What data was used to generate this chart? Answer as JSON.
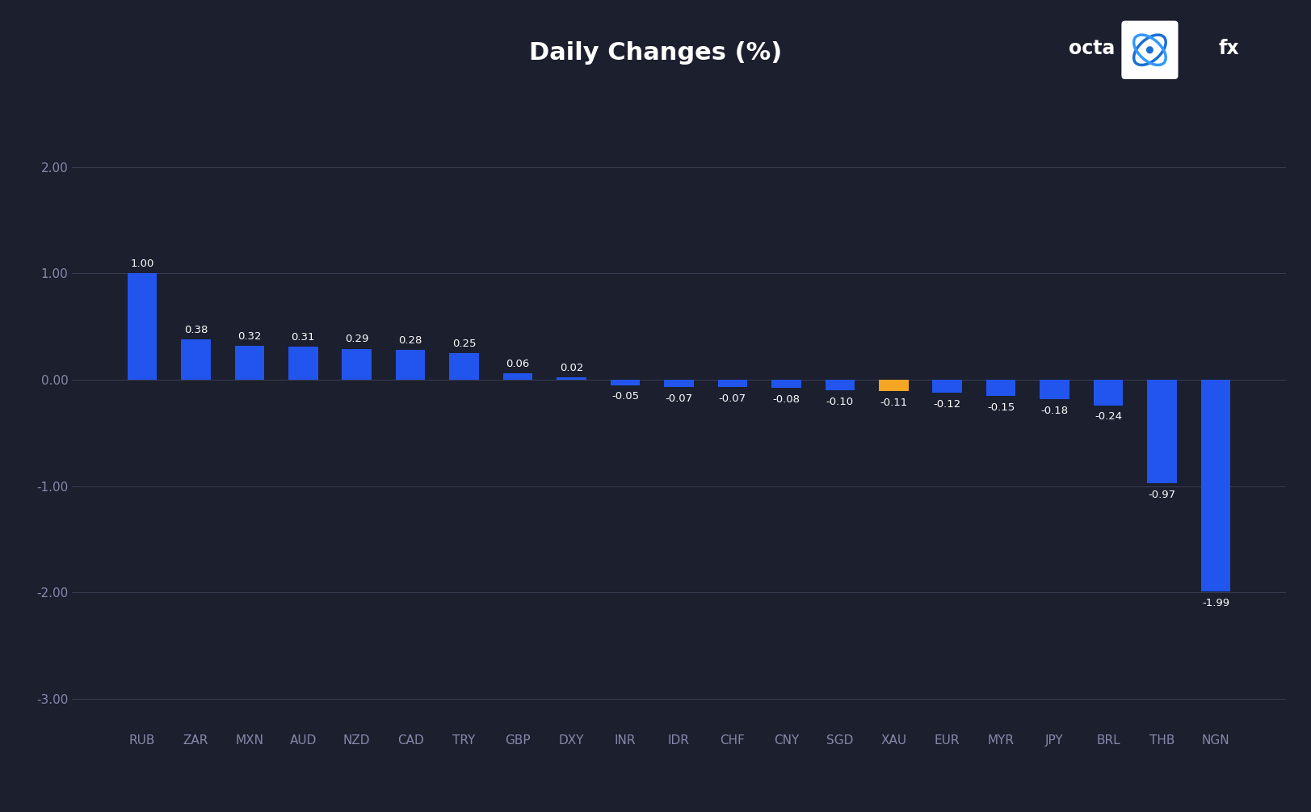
{
  "categories": [
    "RUB",
    "ZAR",
    "MXN",
    "AUD",
    "NZD",
    "CAD",
    "TRY",
    "GBP",
    "DXY",
    "INR",
    "IDR",
    "CHF",
    "CNY",
    "SGD",
    "XAU",
    "EUR",
    "MYR",
    "JPY",
    "BRL",
    "THB",
    "NGN"
  ],
  "values": [
    1.0,
    0.38,
    0.32,
    0.31,
    0.29,
    0.28,
    0.25,
    0.06,
    0.02,
    -0.05,
    -0.07,
    -0.07,
    -0.08,
    -0.1,
    -0.11,
    -0.12,
    -0.15,
    -0.18,
    -0.24,
    -0.97,
    -1.99
  ],
  "bar_colors": [
    "#2255ee",
    "#2255ee",
    "#2255ee",
    "#2255ee",
    "#2255ee",
    "#2255ee",
    "#2255ee",
    "#2255ee",
    "#2255ee",
    "#2255ee",
    "#2255ee",
    "#2255ee",
    "#2255ee",
    "#2255ee",
    "#f5a623",
    "#2255ee",
    "#2255ee",
    "#2255ee",
    "#2255ee",
    "#2255ee",
    "#2255ee"
  ],
  "title": "Daily Changes (%)",
  "title_fontsize": 22,
  "title_color": "#ffffff",
  "background_color": "#1b1f2e",
  "axes_background": "#1b1f2e",
  "grid_color": "#3a3d52",
  "tick_color": "#8888aa",
  "label_color": "#8888aa",
  "ylim": [
    -3.3,
    2.5
  ],
  "yticks": [
    -3.0,
    -2.0,
    -1.0,
    0.0,
    1.0,
    2.0
  ],
  "bar_width": 0.55
}
